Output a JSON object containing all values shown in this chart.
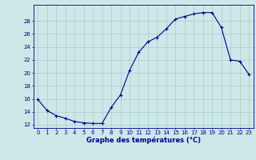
{
  "hours": [
    0,
    1,
    2,
    3,
    4,
    5,
    6,
    7,
    8,
    9,
    10,
    11,
    12,
    13,
    14,
    15,
    16,
    17,
    18,
    19,
    20,
    21,
    22,
    23
  ],
  "temps": [
    15.9,
    14.2,
    13.4,
    13.0,
    12.5,
    12.3,
    12.2,
    12.2,
    14.7,
    16.6,
    20.4,
    23.2,
    24.8,
    25.5,
    26.8,
    28.3,
    28.7,
    29.1,
    29.3,
    29.3,
    27.0,
    22.0,
    21.8,
    19.8
  ],
  "bg_color": "#cce8e8",
  "line_color": "#00008b",
  "marker_color": "#00008b",
  "grid_color": "#aacccc",
  "xlabel": "Graphe des températures (°C)",
  "xlim": [
    -0.5,
    23.5
  ],
  "ylim": [
    11.5,
    30.5
  ],
  "yticks": [
    12,
    14,
    16,
    18,
    20,
    22,
    24,
    26,
    28
  ],
  "xticks": [
    0,
    1,
    2,
    3,
    4,
    5,
    6,
    7,
    8,
    9,
    10,
    11,
    12,
    13,
    14,
    15,
    16,
    17,
    18,
    19,
    20,
    21,
    22,
    23
  ],
  "xlabel_color": "#00008b",
  "tick_color": "#00008b",
  "axis_color": "#00008b",
  "tick_fontsize": 5.0,
  "xlabel_fontsize": 6.0
}
